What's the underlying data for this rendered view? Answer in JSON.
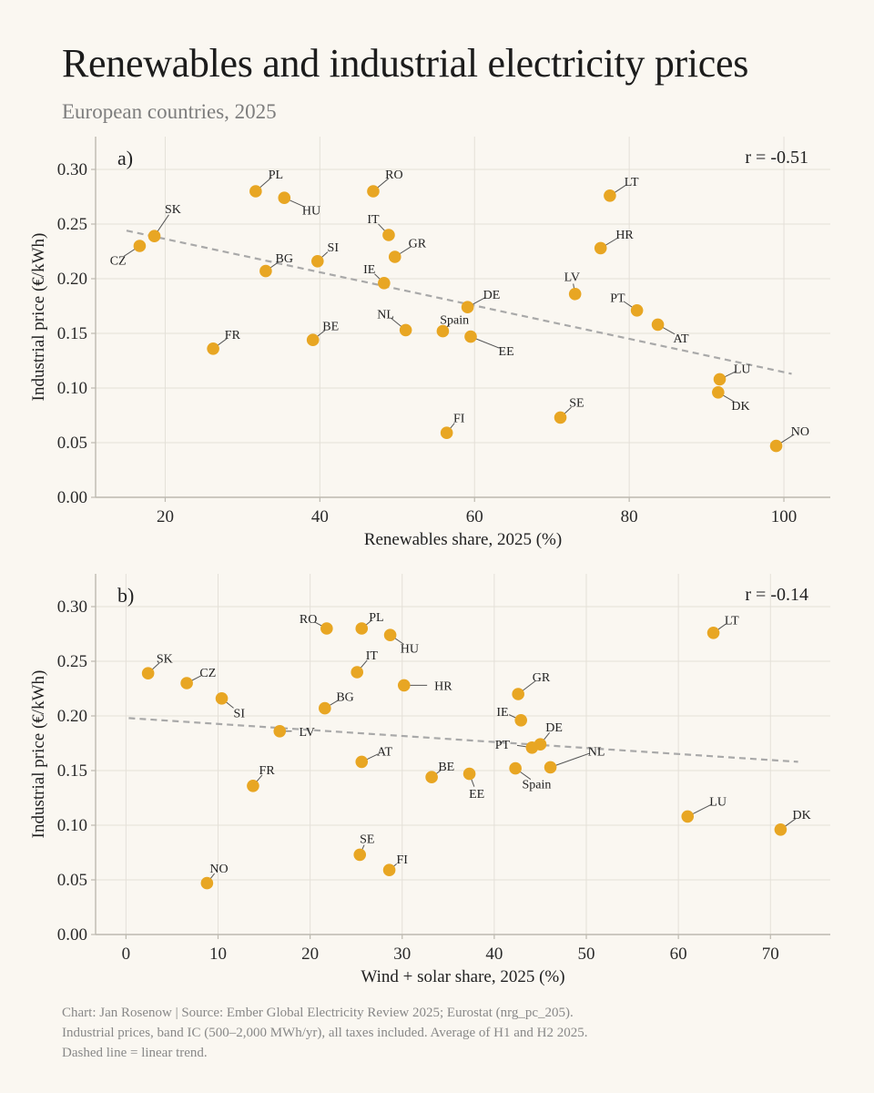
{
  "header": {
    "title": "Renewables and industrial electricity prices",
    "subtitle": "European countries, 2025"
  },
  "colors": {
    "point": "#e8a623",
    "trend": "#a9a9a9",
    "grid": "#e4e0d8",
    "axis": "#bdb9b0",
    "background": "#faf7f1"
  },
  "chart_data": [
    {
      "type": "scatter",
      "panel_label": "a)",
      "annotation": "r = -0.51",
      "xlabel": "Renewables share, 2025 (%)",
      "ylabel": "Industrial price (€/kWh)",
      "xlim": [
        11,
        106
      ],
      "ylim": [
        0,
        0.33
      ],
      "xticks": [
        20,
        40,
        60,
        80,
        100
      ],
      "xtick_labels": [
        "20",
        "40",
        "60",
        "80",
        "100"
      ],
      "yticks": [
        0,
        0.05,
        0.1,
        0.15,
        0.2,
        0.25,
        0.3
      ],
      "ytick_labels": [
        "0.00",
        "0.05",
        "0.10",
        "0.15",
        "0.20",
        "0.25",
        "0.30"
      ],
      "grid": true,
      "trend": {
        "x": [
          15,
          101
        ],
        "y": [
          0.244,
          0.113
        ]
      },
      "points": [
        {
          "label": "PL",
          "x": 31.7,
          "y": 0.28,
          "lx": 2.6,
          "ly": 0.016
        },
        {
          "label": "HU",
          "x": 35.4,
          "y": 0.274,
          "lx": 3.5,
          "ly": -0.011
        },
        {
          "label": "RO",
          "x": 46.9,
          "y": 0.28,
          "lx": 2.7,
          "ly": 0.016
        },
        {
          "label": "LT",
          "x": 77.5,
          "y": 0.276,
          "lx": 2.8,
          "ly": 0.013
        },
        {
          "label": "SK",
          "x": 18.6,
          "y": 0.239,
          "lx": 2.4,
          "ly": 0.025
        },
        {
          "label": "CZ",
          "x": 16.7,
          "y": 0.23,
          "lx": -2.8,
          "ly": -0.013
        },
        {
          "label": "IT",
          "x": 48.9,
          "y": 0.24,
          "lx": -2.0,
          "ly": 0.015
        },
        {
          "label": "GR",
          "x": 49.7,
          "y": 0.22,
          "lx": 2.9,
          "ly": 0.013
        },
        {
          "label": "HR",
          "x": 76.3,
          "y": 0.228,
          "lx": 3.1,
          "ly": 0.013
        },
        {
          "label": "SI",
          "x": 39.7,
          "y": 0.216,
          "lx": 2.0,
          "ly": 0.013
        },
        {
          "label": "BG",
          "x": 33.0,
          "y": 0.207,
          "lx": 2.4,
          "ly": 0.012
        },
        {
          "label": "IE",
          "x": 48.3,
          "y": 0.196,
          "lx": -1.9,
          "ly": 0.013
        },
        {
          "label": "DE",
          "x": 59.1,
          "y": 0.174,
          "lx": 3.1,
          "ly": 0.012
        },
        {
          "label": "LV",
          "x": 73.0,
          "y": 0.186,
          "lx": -0.4,
          "ly": 0.016
        },
        {
          "label": "PT",
          "x": 81.0,
          "y": 0.171,
          "lx": -2.5,
          "ly": 0.012
        },
        {
          "label": "AT",
          "x": 83.7,
          "y": 0.158,
          "lx": 3.0,
          "ly": -0.012
        },
        {
          "label": "NL",
          "x": 51.1,
          "y": 0.153,
          "lx": -2.6,
          "ly": 0.015
        },
        {
          "label": "Spain",
          "x": 55.9,
          "y": 0.152,
          "lx": 1.5,
          "ly": 0.011
        },
        {
          "label": "BE",
          "x": 39.1,
          "y": 0.144,
          "lx": 2.3,
          "ly": 0.013
        },
        {
          "label": "EE",
          "x": 59.5,
          "y": 0.147,
          "lx": 4.6,
          "ly": -0.013
        },
        {
          "label": "FR",
          "x": 26.2,
          "y": 0.136,
          "lx": 2.5,
          "ly": 0.013
        },
        {
          "label": "LU",
          "x": 91.7,
          "y": 0.108,
          "lx": 2.9,
          "ly": 0.01
        },
        {
          "label": "DK",
          "x": 91.5,
          "y": 0.096,
          "lx": 2.9,
          "ly": -0.012
        },
        {
          "label": "SE",
          "x": 71.1,
          "y": 0.073,
          "lx": 2.1,
          "ly": 0.014
        },
        {
          "label": "FI",
          "x": 56.4,
          "y": 0.059,
          "lx": 1.6,
          "ly": 0.014
        },
        {
          "label": "NO",
          "x": 99.0,
          "y": 0.047,
          "lx": 3.1,
          "ly": 0.014
        }
      ]
    },
    {
      "type": "scatter",
      "panel_label": "b)",
      "annotation": "r = -0.14",
      "xlabel": "Wind + solar share, 2025 (%)",
      "ylabel": "Industrial price (€/kWh)",
      "xlim": [
        -3.3,
        76.5
      ],
      "ylim": [
        0,
        0.33
      ],
      "xticks": [
        0,
        10,
        20,
        30,
        40,
        50,
        60,
        70
      ],
      "xtick_labels": [
        "0",
        "10",
        "20",
        "30",
        "40",
        "50",
        "60",
        "70"
      ],
      "yticks": [
        0,
        0.05,
        0.1,
        0.15,
        0.2,
        0.25,
        0.3
      ],
      "ytick_labels": [
        "0.00",
        "0.05",
        "0.10",
        "0.15",
        "0.20",
        "0.25",
        "0.30"
      ],
      "grid": true,
      "trend": {
        "x": [
          0.3,
          73
        ],
        "y": [
          0.198,
          0.158
        ]
      },
      "points": [
        {
          "label": "RO",
          "x": 21.8,
          "y": 0.28,
          "lx": -2.0,
          "ly": 0.009
        },
        {
          "label": "PL",
          "x": 25.6,
          "y": 0.28,
          "lx": 1.6,
          "ly": 0.011
        },
        {
          "label": "HU",
          "x": 28.7,
          "y": 0.274,
          "lx": 2.1,
          "ly": -0.012
        },
        {
          "label": "LT",
          "x": 63.8,
          "y": 0.276,
          "lx": 2.0,
          "ly": 0.012
        },
        {
          "label": "SK",
          "x": 2.4,
          "y": 0.239,
          "lx": 1.8,
          "ly": 0.014
        },
        {
          "label": "CZ",
          "x": 6.6,
          "y": 0.23,
          "lx": 2.3,
          "ly": 0.01
        },
        {
          "label": "IT",
          "x": 25.1,
          "y": 0.24,
          "lx": 1.6,
          "ly": 0.016
        },
        {
          "label": "HR",
          "x": 30.2,
          "y": 0.228,
          "lx": 3.3,
          "ly": 0.0
        },
        {
          "label": "GR",
          "x": 42.6,
          "y": 0.22,
          "lx": 2.5,
          "ly": 0.016
        },
        {
          "label": "SI",
          "x": 10.4,
          "y": 0.216,
          "lx": 1.9,
          "ly": -0.013
        },
        {
          "label": "BG",
          "x": 21.6,
          "y": 0.207,
          "lx": 2.2,
          "ly": 0.011
        },
        {
          "label": "IE",
          "x": 42.9,
          "y": 0.196,
          "lx": -2.0,
          "ly": 0.008
        },
        {
          "label": "LV",
          "x": 16.7,
          "y": 0.186,
          "lx": 2.1,
          "ly": 0.0
        },
        {
          "label": "DE",
          "x": 45.0,
          "y": 0.174,
          "lx": 1.5,
          "ly": 0.016
        },
        {
          "label": "PT",
          "x": 44.1,
          "y": 0.171,
          "lx": -2.4,
          "ly": 0.003
        },
        {
          "label": "NL",
          "x": 46.1,
          "y": 0.153,
          "lx": 5.0,
          "ly": 0.015
        },
        {
          "label": "Spain",
          "x": 42.3,
          "y": 0.152,
          "lx": 2.3,
          "ly": -0.014
        },
        {
          "label": "AT",
          "x": 25.6,
          "y": 0.158,
          "lx": 2.5,
          "ly": 0.01
        },
        {
          "label": "BE",
          "x": 33.2,
          "y": 0.144,
          "lx": 1.6,
          "ly": 0.01
        },
        {
          "label": "EE",
          "x": 37.3,
          "y": 0.147,
          "lx": 0.8,
          "ly": -0.018
        },
        {
          "label": "FR",
          "x": 13.8,
          "y": 0.136,
          "lx": 1.5,
          "ly": 0.015
        },
        {
          "label": "LU",
          "x": 61.0,
          "y": 0.108,
          "lx": 3.3,
          "ly": 0.014
        },
        {
          "label": "DK",
          "x": 71.1,
          "y": 0.096,
          "lx": 2.3,
          "ly": 0.014
        },
        {
          "label": "SE",
          "x": 25.4,
          "y": 0.073,
          "lx": 0.8,
          "ly": 0.015
        },
        {
          "label": "FI",
          "x": 28.6,
          "y": 0.059,
          "lx": 1.4,
          "ly": 0.01
        },
        {
          "label": "NO",
          "x": 8.8,
          "y": 0.047,
          "lx": 1.3,
          "ly": 0.014
        }
      ]
    }
  ],
  "footer": {
    "line1": "Chart: Jan Rosenow  |  Source: Ember Global Electricity Review 2025; Eurostat (nrg_pc_205).",
    "line2": "Industrial prices, band IC (500–2,000 MWh/yr), all taxes included. Average of H1 and H2 2025.",
    "line3": "Dashed line = linear trend."
  }
}
